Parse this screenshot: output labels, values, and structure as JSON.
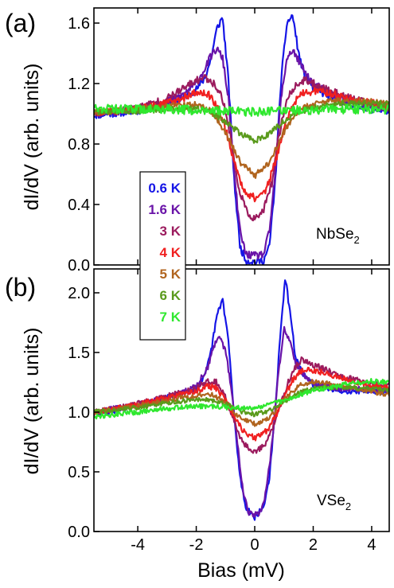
{
  "chart_data": [
    {
      "type": "line",
      "panel_label": "(a)",
      "material": "NbSe",
      "material_sub": "2",
      "ylabel": "dI/dV (arb. units)",
      "xlabel": "",
      "xlim": [
        -5.5,
        4.6
      ],
      "ylim": [
        0,
        1.7
      ],
      "yticks": [
        "0.0",
        "0.4",
        "0.8",
        "1.2",
        "1.6"
      ],
      "ytick_values": [
        0,
        0.4,
        0.8,
        1.2,
        1.6
      ],
      "xticks": [
        -4,
        -2,
        0,
        2,
        4
      ],
      "series": [
        {
          "name": "0.6 K",
          "color": "#1515e6",
          "noise": 0.025,
          "x": [
            -5.5,
            -4,
            -3,
            -2.5,
            -2,
            -1.7,
            -1.5,
            -1.3,
            -1.1,
            -0.9,
            -0.7,
            -0.5,
            -0.3,
            0,
            0.3,
            0.5,
            0.7,
            0.9,
            1.1,
            1.3,
            1.5,
            1.7,
            2,
            2.5,
            3,
            4,
            4.6
          ],
          "y": [
            0.99,
            1.02,
            1.06,
            1.1,
            1.16,
            1.24,
            1.36,
            1.56,
            1.64,
            1.22,
            0.55,
            0.12,
            0.03,
            0.02,
            0.03,
            0.12,
            0.55,
            1.22,
            1.6,
            1.65,
            1.4,
            1.25,
            1.17,
            1.12,
            1.08,
            1.03,
            1.02
          ]
        },
        {
          "name": "1.6 K",
          "color": "#6a14a8",
          "noise": 0.025,
          "x": [
            -5.5,
            -4,
            -3,
            -2.5,
            -2,
            -1.7,
            -1.5,
            -1.3,
            -1.1,
            -0.9,
            -0.7,
            -0.5,
            -0.3,
            0,
            0.3,
            0.5,
            0.7,
            0.9,
            1.1,
            1.3,
            1.5,
            1.7,
            2,
            2.5,
            3,
            4,
            4.6
          ],
          "y": [
            1.0,
            1.03,
            1.08,
            1.12,
            1.2,
            1.3,
            1.38,
            1.43,
            1.37,
            1.1,
            0.6,
            0.22,
            0.07,
            0.06,
            0.07,
            0.22,
            0.6,
            1.1,
            1.37,
            1.42,
            1.35,
            1.28,
            1.2,
            1.14,
            1.1,
            1.05,
            1.03
          ]
        },
        {
          "name": "3 K",
          "color": "#9b1b5e",
          "noise": 0.025,
          "x": [
            -5.5,
            -4,
            -3,
            -2.5,
            -2,
            -1.7,
            -1.5,
            -1.2,
            -1,
            -0.8,
            -0.6,
            -0.3,
            0,
            0.3,
            0.6,
            0.8,
            1,
            1.2,
            1.5,
            1.7,
            2,
            2.5,
            3,
            4,
            4.6
          ],
          "y": [
            1.0,
            1.04,
            1.1,
            1.16,
            1.22,
            1.24,
            1.22,
            1.15,
            1.02,
            0.82,
            0.55,
            0.36,
            0.3,
            0.36,
            0.55,
            0.82,
            1.02,
            1.14,
            1.2,
            1.22,
            1.2,
            1.16,
            1.12,
            1.06,
            1.04
          ]
        },
        {
          "name": "4 K",
          "color": "#f02020",
          "noise": 0.025,
          "x": [
            -5.5,
            -4,
            -3,
            -2.5,
            -2,
            -1.6,
            -1.3,
            -1,
            -0.7,
            -0.4,
            0,
            0.4,
            0.7,
            1,
            1.3,
            1.6,
            2,
            2.5,
            3,
            4,
            4.6
          ],
          "y": [
            1.01,
            1.03,
            1.07,
            1.1,
            1.14,
            1.13,
            1.06,
            0.9,
            0.68,
            0.5,
            0.44,
            0.5,
            0.68,
            0.9,
            1.06,
            1.13,
            1.15,
            1.14,
            1.11,
            1.07,
            1.05
          ]
        },
        {
          "name": "5 K",
          "color": "#b0641e",
          "noise": 0.02,
          "x": [
            -5.5,
            -4,
            -3,
            -2,
            -1.5,
            -1,
            -0.5,
            0,
            0.5,
            1,
            1.5,
            2,
            3,
            4,
            4.6
          ],
          "y": [
            1.01,
            1.03,
            1.05,
            1.06,
            1.02,
            0.88,
            0.68,
            0.59,
            0.68,
            0.88,
            1.02,
            1.07,
            1.09,
            1.08,
            1.07
          ]
        },
        {
          "name": "6 K",
          "color": "#5a9a1c",
          "noise": 0.02,
          "x": [
            -5.5,
            -4,
            -3,
            -2,
            -1.5,
            -1,
            -0.5,
            0,
            0.5,
            1,
            1.5,
            2,
            3,
            4,
            4.6
          ],
          "y": [
            1.01,
            1.02,
            1.03,
            1.03,
            1.01,
            0.95,
            0.87,
            0.82,
            0.87,
            0.95,
            1.01,
            1.04,
            1.07,
            1.07,
            1.06
          ]
        },
        {
          "name": "7 K",
          "color": "#2fe82f",
          "noise": 0.03,
          "x": [
            -5.5,
            -3,
            -1,
            0,
            1,
            3,
            4.6
          ],
          "y": [
            1.03,
            1.03,
            1.02,
            1.01,
            1.02,
            1.03,
            1.03
          ]
        }
      ]
    },
    {
      "type": "line",
      "panel_label": "(b)",
      "material": "VSe",
      "material_sub": "2",
      "ylabel": "dI/dV (arb. units)",
      "xlabel": "Bias (mV)",
      "xlim": [
        -5.5,
        4.6
      ],
      "ylim": [
        0,
        2.2
      ],
      "yticks": [
        "0.0",
        "0.5",
        "1.0",
        "1.5",
        "2.0"
      ],
      "ytick_values": [
        0,
        0.5,
        1.0,
        1.5,
        2.0
      ],
      "xticks": [
        -4,
        -2,
        0,
        2,
        4
      ],
      "xticklabels": [
        "-4",
        "-2",
        "0",
        "2",
        "4"
      ],
      "series": [
        {
          "name": "0.6 K",
          "color": "#1515e6",
          "noise": 0.025,
          "x": [
            -5.5,
            -4,
            -3,
            -2.5,
            -2,
            -1.7,
            -1.5,
            -1.3,
            -1.1,
            -0.9,
            -0.7,
            -0.5,
            -0.3,
            0,
            0.3,
            0.5,
            0.7,
            0.9,
            1.05,
            1.2,
            1.4,
            1.7,
            2,
            3,
            4,
            4.6
          ],
          "y": [
            0.98,
            1.05,
            1.12,
            1.15,
            1.2,
            1.3,
            1.5,
            1.8,
            1.95,
            1.6,
            0.95,
            0.45,
            0.2,
            0.12,
            0.2,
            0.45,
            1.0,
            1.75,
            2.12,
            1.85,
            1.45,
            1.3,
            1.23,
            1.18,
            1.18,
            1.17
          ]
        },
        {
          "name": "1.6 K",
          "color": "#6a14a8",
          "noise": 0.025,
          "x": [
            -5.5,
            -4,
            -3,
            -2.5,
            -2,
            -1.6,
            -1.4,
            -1.2,
            -1,
            -0.8,
            -0.6,
            -0.4,
            -0.2,
            0,
            0.2,
            0.4,
            0.6,
            0.8,
            1,
            1.2,
            1.4,
            1.7,
            2,
            3,
            4,
            4.6
          ],
          "y": [
            1.0,
            1.06,
            1.12,
            1.16,
            1.22,
            1.38,
            1.55,
            1.62,
            1.52,
            1.2,
            0.75,
            0.35,
            0.16,
            0.14,
            0.16,
            0.35,
            0.75,
            1.3,
            1.7,
            1.6,
            1.42,
            1.3,
            1.24,
            1.2,
            1.19,
            1.18
          ]
        },
        {
          "name": "3 K",
          "color": "#9b1b5e",
          "noise": 0.025,
          "x": [
            -5.5,
            -4,
            -3,
            -2,
            -1.6,
            -1.3,
            -1,
            -0.7,
            -0.4,
            0,
            0.4,
            0.7,
            1,
            1.3,
            1.6,
            2,
            2.5,
            3,
            4,
            4.6
          ],
          "y": [
            1.0,
            1.07,
            1.13,
            1.2,
            1.26,
            1.25,
            1.12,
            0.92,
            0.74,
            0.66,
            0.74,
            0.92,
            1.15,
            1.35,
            1.44,
            1.4,
            1.35,
            1.3,
            1.24,
            1.22
          ]
        },
        {
          "name": "4 K",
          "color": "#f02020",
          "noise": 0.025,
          "x": [
            -5.5,
            -4,
            -3,
            -2,
            -1.6,
            -1.3,
            -1,
            -0.7,
            -0.4,
            0,
            0.4,
            0.7,
            1,
            1.3,
            1.6,
            2,
            2.5,
            3,
            4,
            4.6
          ],
          "y": [
            1.0,
            1.06,
            1.12,
            1.18,
            1.22,
            1.2,
            1.1,
            0.96,
            0.84,
            0.78,
            0.84,
            0.96,
            1.12,
            1.27,
            1.35,
            1.35,
            1.32,
            1.28,
            1.22,
            1.2
          ]
        },
        {
          "name": "5 K",
          "color": "#b0641e",
          "noise": 0.02,
          "x": [
            -5.5,
            -4,
            -3,
            -2,
            -1.5,
            -1,
            -0.5,
            0,
            0.5,
            1,
            1.5,
            2,
            3,
            4,
            4.6
          ],
          "y": [
            1.0,
            1.05,
            1.1,
            1.14,
            1.15,
            1.08,
            0.95,
            0.9,
            0.95,
            1.1,
            1.22,
            1.26,
            1.22,
            1.17,
            1.15
          ]
        },
        {
          "name": "6 K",
          "color": "#5a9a1c",
          "noise": 0.02,
          "x": [
            -5.5,
            -4,
            -3,
            -2,
            -1.5,
            -1,
            -0.5,
            0,
            0.5,
            1,
            1.5,
            2,
            3,
            4,
            4.6
          ],
          "y": [
            1.0,
            1.04,
            1.08,
            1.1,
            1.1,
            1.07,
            1.01,
            0.98,
            1.01,
            1.09,
            1.16,
            1.2,
            1.21,
            1.2,
            1.18
          ]
        },
        {
          "name": "7 K",
          "color": "#2fe82f",
          "noise": 0.02,
          "x": [
            -5.5,
            -4,
            -3,
            -2,
            -1,
            0,
            1,
            2,
            3,
            4,
            4.6
          ],
          "y": [
            0.96,
            1.0,
            1.03,
            1.05,
            1.04,
            1.03,
            1.1,
            1.18,
            1.23,
            1.26,
            1.25
          ]
        }
      ]
    }
  ]
}
